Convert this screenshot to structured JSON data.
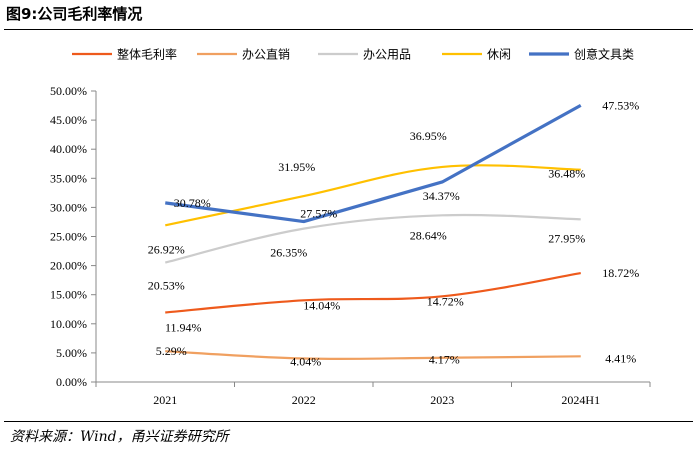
{
  "figure": {
    "title": "图9:公司毛利率情况",
    "source": "资料来源：Wind，甬兴证券研究所"
  },
  "chart_data": {
    "type": "line",
    "categories": [
      "2021",
      "2022",
      "2023",
      "2024H1"
    ],
    "ylim": [
      0,
      50
    ],
    "yticks": [
      "0.00%",
      "5.00%",
      "10.00%",
      "15.00%",
      "20.00%",
      "25.00%",
      "30.00%",
      "35.00%",
      "40.00%",
      "45.00%",
      "50.00%"
    ],
    "grid": false,
    "legend_position": "top",
    "series": [
      {
        "name": "整体毛利率",
        "color": "#EE5A1C",
        "values": [
          11.94,
          14.04,
          14.72,
          18.72
        ],
        "labels": [
          "11.94%",
          "14.04%",
          "14.72%",
          "18.72%"
        ]
      },
      {
        "name": "办公直销",
        "color": "#F0A060",
        "values": [
          5.29,
          4.04,
          4.17,
          4.41
        ],
        "labels": [
          "5.29%",
          "4.04%",
          "4.17%",
          "4.41%"
        ]
      },
      {
        "name": "办公用品",
        "color": "#CCCCCC",
        "values": [
          20.53,
          26.35,
          28.64,
          27.95
        ],
        "labels": [
          "20.53%",
          "26.35%",
          "28.64%",
          "27.95%"
        ]
      },
      {
        "name": "休闲",
        "color": "#FFC000",
        "values": [
          26.92,
          31.95,
          36.95,
          36.48
        ],
        "labels": [
          "26.92%",
          "31.95%",
          "36.95%",
          "36.48%"
        ]
      },
      {
        "name": "创意文具类",
        "color": "#4472C4",
        "values": [
          30.78,
          27.57,
          34.37,
          47.53
        ],
        "labels": [
          "30.78%",
          "27.57%",
          "34.37%",
          "47.53%"
        ]
      }
    ]
  }
}
